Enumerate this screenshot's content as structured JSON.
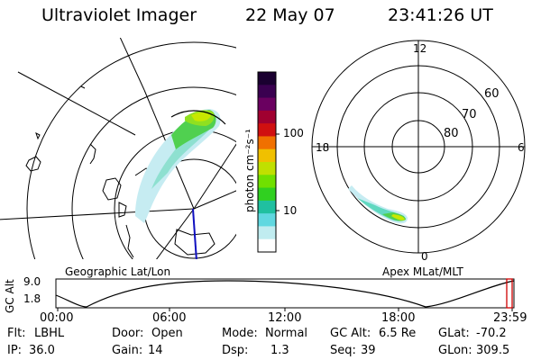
{
  "header": {
    "instrument": "Ultraviolet Imager",
    "date": "22 May 07",
    "time": "23:41:26 UT"
  },
  "colorbar": {
    "unit_label": "photon cm⁻²s⁻¹",
    "ticks": [
      "100",
      "10"
    ],
    "colors": [
      "#1a0030",
      "#3a0050",
      "#6a0060",
      "#a00030",
      "#d01010",
      "#f07000",
      "#f0c000",
      "#c0e000",
      "#70e000",
      "#30d020",
      "#20c0a0",
      "#60d8e0",
      "#c0ecf0",
      "#ffffff"
    ]
  },
  "panels": {
    "left_caption": "Geographic Lat/Lon",
    "right_caption": "Apex MLat/MLT",
    "right_ring_labels": [
      "60",
      "70",
      "80"
    ],
    "right_clock_labels": {
      "top": "12",
      "left": "18",
      "right": "6",
      "bottom": "0"
    }
  },
  "timeline": {
    "y_axis_label": "GC Alt",
    "y_top": "9.0",
    "y_bottom": "1.8",
    "ticks": [
      "00:00",
      "06:00",
      "12:00",
      "18:00",
      "23:59"
    ]
  },
  "status": {
    "row1": [
      {
        "label": "Flt:",
        "value": "LBHL"
      },
      {
        "label": "Door:",
        "value": "Open"
      },
      {
        "label": "Mode:",
        "value": "Normal"
      },
      {
        "label": "GC Alt:",
        "value": "6.5 Re"
      },
      {
        "label": "GLat:",
        "value": "-70.2"
      }
    ],
    "row2": [
      {
        "label": "IP:",
        "value": "36.0"
      },
      {
        "label": "Gain:",
        "value": "14"
      },
      {
        "label": "Dsp:",
        "value": "1.3"
      },
      {
        "label": "Seq:",
        "value": "39"
      },
      {
        "label": "GLon:",
        "value": "309.5"
      }
    ]
  }
}
